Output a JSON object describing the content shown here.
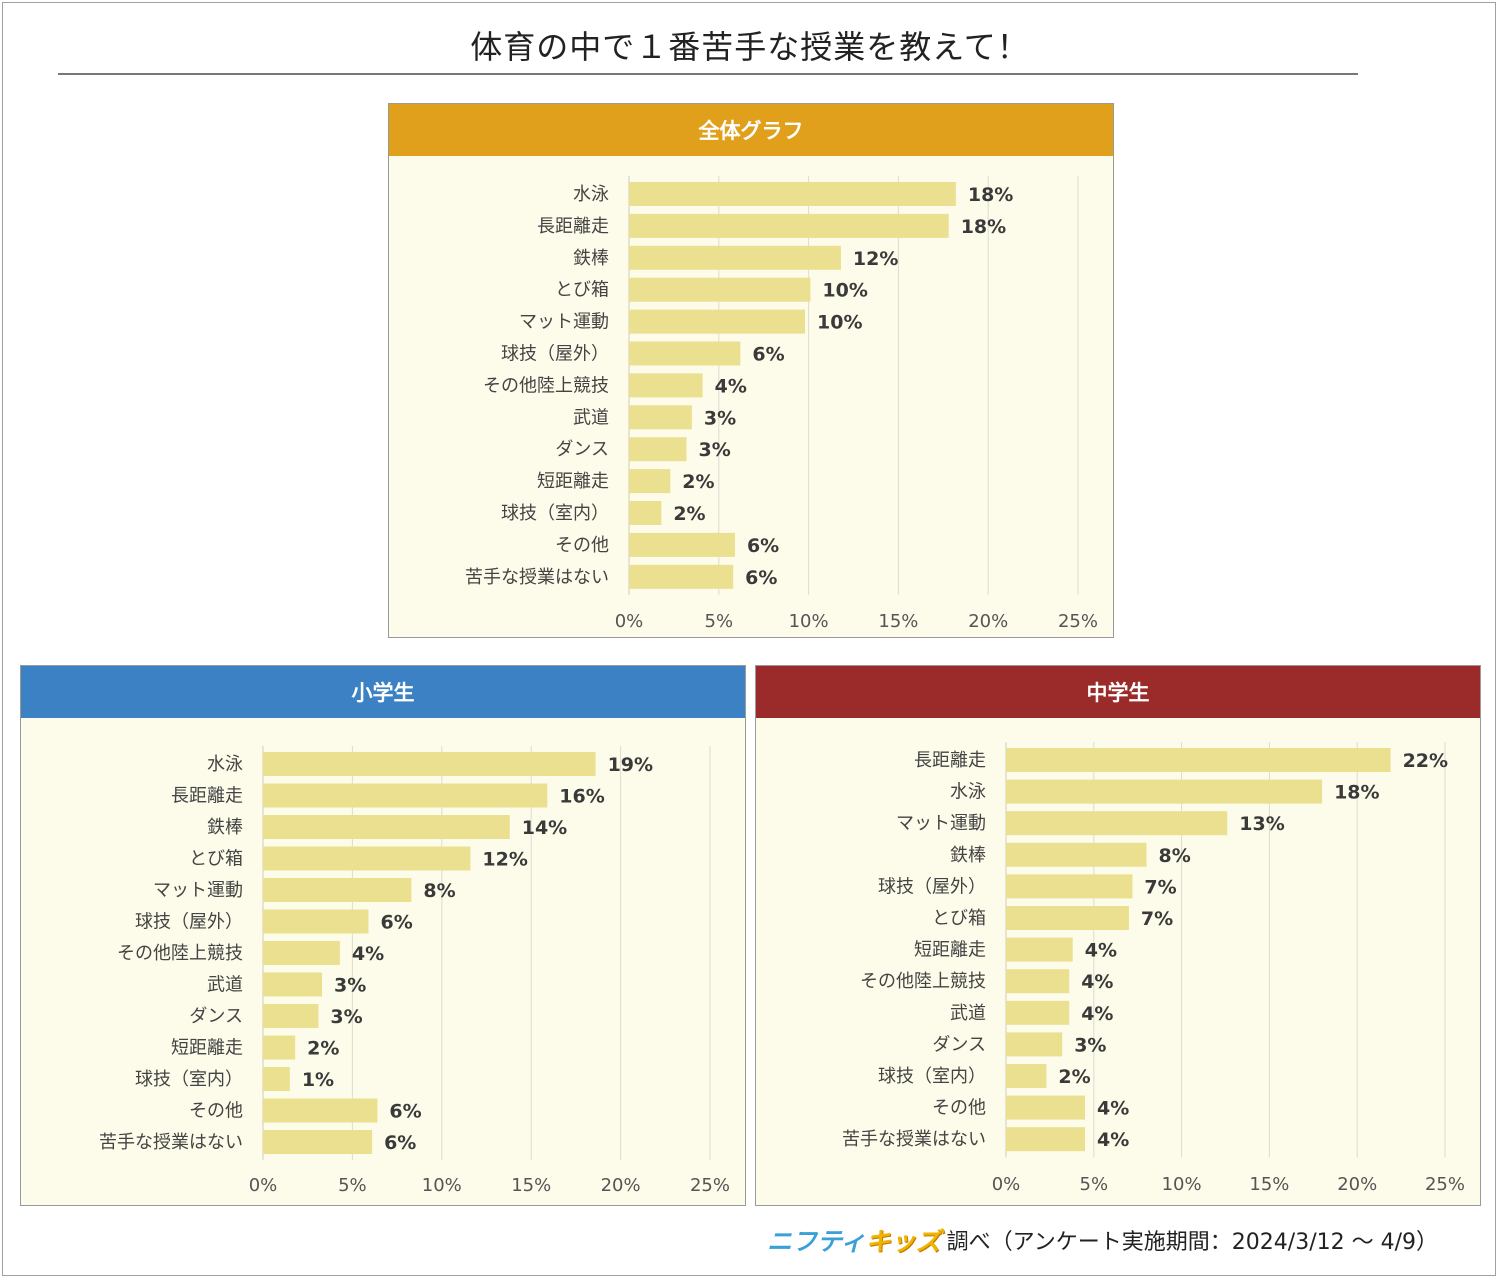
{
  "page": {
    "title": "体育の中で１番苦手な授業を教えて！",
    "footer": {
      "logo_part1": "ニフティ",
      "logo_part2": "キッズ",
      "text": "調べ（アンケート実施期間：2024/3/12 〜 4/9）"
    }
  },
  "colors": {
    "overall_header": "#e0a01b",
    "elementary_header": "#3b81c4",
    "junior_header": "#9b2a2a",
    "bar": "#ebe08f",
    "panel_bg": "#fdfbe9"
  },
  "chart_data": [
    {
      "type": "bar",
      "orientation": "horizontal",
      "title": "全体グラフ",
      "categories": [
        "水泳",
        "長距離走",
        "鉄棒",
        "とび箱",
        "マット運動",
        "球技（屋外）",
        "その他陸上競技",
        "武道",
        "ダンス",
        "短距離走",
        "球技（室内）",
        "その他",
        "苦手な授業はない"
      ],
      "values": [
        18.2,
        17.8,
        11.8,
        10.1,
        9.8,
        6.2,
        4.1,
        3.5,
        3.2,
        2.3,
        1.8,
        5.9,
        5.8
      ],
      "labels": [
        "18%",
        "18%",
        "12%",
        "10%",
        "10%",
        "6%",
        "4%",
        "3%",
        "3%",
        "2%",
        "2%",
        "6%",
        "6%"
      ],
      "xlim": [
        0,
        25
      ],
      "xticks": [
        "0%",
        "5%",
        "10%",
        "15%",
        "20%",
        "25%"
      ],
      "grid": true
    },
    {
      "type": "bar",
      "orientation": "horizontal",
      "title": "小学生",
      "categories": [
        "水泳",
        "長距離走",
        "鉄棒",
        "とび箱",
        "マット運動",
        "球技（屋外）",
        "その他陸上競技",
        "武道",
        "ダンス",
        "短距離走",
        "球技（室内）",
        "その他",
        "苦手な授業はない"
      ],
      "values": [
        18.6,
        15.9,
        13.8,
        11.6,
        8.3,
        5.9,
        4.3,
        3.3,
        3.1,
        1.8,
        1.5,
        6.4,
        6.1
      ],
      "labels": [
        "19%",
        "16%",
        "14%",
        "12%",
        "8%",
        "6%",
        "4%",
        "3%",
        "3%",
        "2%",
        "1%",
        "6%",
        "6%"
      ],
      "xlim": [
        0,
        25
      ],
      "xticks": [
        "0%",
        "5%",
        "10%",
        "15%",
        "20%",
        "25%"
      ],
      "grid": true
    },
    {
      "type": "bar",
      "orientation": "horizontal",
      "title": "中学生",
      "categories": [
        "長距離走",
        "水泳",
        "マット運動",
        "鉄棒",
        "球技（屋外）",
        "とび箱",
        "短距離走",
        "その他陸上競技",
        "武道",
        "ダンス",
        "球技（室内）",
        "その他",
        "苦手な授業はない"
      ],
      "values": [
        21.9,
        18.0,
        12.6,
        8.0,
        7.2,
        7.0,
        3.8,
        3.6,
        3.6,
        3.2,
        2.3,
        4.5,
        4.5
      ],
      "labels": [
        "22%",
        "18%",
        "13%",
        "8%",
        "7%",
        "7%",
        "4%",
        "4%",
        "4%",
        "3%",
        "2%",
        "4%",
        "4%"
      ],
      "xlim": [
        0,
        25
      ],
      "xticks": [
        "0%",
        "5%",
        "10%",
        "15%",
        "20%",
        "25%"
      ],
      "grid": true
    }
  ]
}
